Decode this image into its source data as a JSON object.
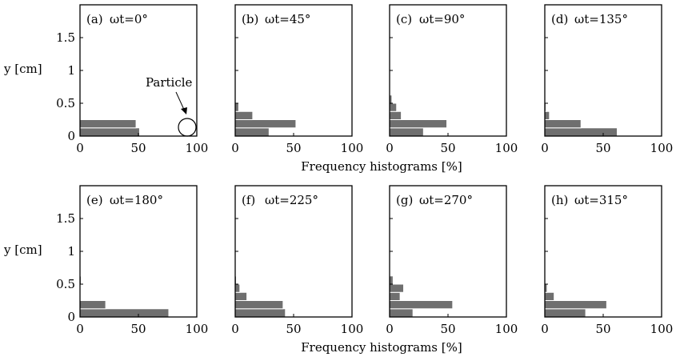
{
  "figure": {
    "ylabel": "y [cm]",
    "xlabel": "Frequency histograms [%]",
    "annotation": "Particle"
  },
  "chart_data": [
    {
      "type": "bar",
      "orientation": "horizontal",
      "panel": "(a)",
      "title": "ωt=0°",
      "xlim": [
        0,
        100
      ],
      "ylim": [
        0,
        2
      ],
      "xticks": [
        "0",
        "50",
        "100"
      ],
      "yticks": [
        "0",
        "0.5",
        "1",
        "1.5"
      ],
      "bins": [
        0.0625,
        0.1875,
        0.3125,
        0.4375,
        0.5625,
        0.6875,
        0.8125,
        0.9375
      ],
      "values": [
        51,
        48,
        0,
        0,
        0,
        0,
        0,
        0
      ]
    },
    {
      "type": "bar",
      "orientation": "horizontal",
      "panel": "(b)",
      "title": "ωt=45°",
      "xlim": [
        0,
        100
      ],
      "ylim": [
        0,
        2
      ],
      "xticks": [
        "0",
        "50",
        "100"
      ],
      "yticks": [
        "0",
        "0.5",
        "1",
        "1.5"
      ],
      "bins": [
        0.0625,
        0.1875,
        0.3125,
        0.4375,
        0.5625,
        0.6875,
        0.8125,
        0.9375
      ],
      "values": [
        29,
        52,
        15,
        3,
        0,
        0,
        0,
        0
      ]
    },
    {
      "type": "bar",
      "orientation": "horizontal",
      "panel": "(c)",
      "title": "ωt=90°",
      "xlim": [
        0,
        100
      ],
      "ylim": [
        0,
        2
      ],
      "xticks": [
        "0",
        "50",
        "100"
      ],
      "yticks": [
        "0",
        "0.5",
        "1",
        "1.5"
      ],
      "bins": [
        0.0625,
        0.1875,
        0.3125,
        0.4375,
        0.5625,
        0.6875,
        0.8125,
        0.9375
      ],
      "values": [
        29,
        49,
        10,
        6,
        2,
        0,
        0,
        0
      ]
    },
    {
      "type": "bar",
      "orientation": "horizontal",
      "panel": "(d)",
      "title": "ωt=135°",
      "xlim": [
        0,
        100
      ],
      "ylim": [
        0,
        2
      ],
      "xticks": [
        "0",
        "50",
        "100"
      ],
      "yticks": [
        "0",
        "0.5",
        "1",
        "1.5"
      ],
      "bins": [
        0.0625,
        0.1875,
        0.3125,
        0.4375,
        0.5625,
        0.6875,
        0.8125,
        0.9375
      ],
      "values": [
        62,
        31,
        4,
        1,
        0,
        0,
        0,
        0
      ]
    },
    {
      "type": "bar",
      "orientation": "horizontal",
      "panel": "(e)",
      "title": "ωt=180°",
      "xlim": [
        0,
        100
      ],
      "ylim": [
        0,
        2
      ],
      "xticks": [
        "0",
        "50",
        "100"
      ],
      "yticks": [
        "0",
        "0.5",
        "1",
        "1.5"
      ],
      "bins": [
        0.0625,
        0.1875,
        0.3125,
        0.4375,
        0.5625,
        0.6875,
        0.8125,
        0.9375
      ],
      "values": [
        76,
        22,
        0,
        0,
        1,
        0,
        0.5,
        0
      ]
    },
    {
      "type": "bar",
      "orientation": "horizontal",
      "panel": "(f)",
      "title": "ωt=225°",
      "xlim": [
        0,
        100
      ],
      "ylim": [
        0,
        2
      ],
      "xticks": [
        "0",
        "50",
        "100"
      ],
      "yticks": [
        "0",
        "0.5",
        "1",
        "1.5"
      ],
      "bins": [
        0.0625,
        0.1875,
        0.3125,
        0.4375,
        0.5625,
        0.6875,
        0.8125,
        0.9375
      ],
      "values": [
        43,
        41,
        10,
        4,
        1,
        0,
        0,
        0
      ]
    },
    {
      "type": "bar",
      "orientation": "horizontal",
      "panel": "(g)",
      "title": "ωt=270°",
      "xlim": [
        0,
        100
      ],
      "ylim": [
        0,
        2
      ],
      "xticks": [
        "0",
        "50",
        "100"
      ],
      "yticks": [
        "0",
        "0.5",
        "1",
        "1.5"
      ],
      "bins": [
        0.0625,
        0.1875,
        0.3125,
        0.4375,
        0.5625,
        0.6875,
        0.8125,
        0.9375
      ],
      "values": [
        20,
        54,
        9,
        12,
        3,
        0,
        0,
        0
      ]
    },
    {
      "type": "bar",
      "orientation": "horizontal",
      "panel": "(h)",
      "title": "ωt=315°",
      "xlim": [
        0,
        100
      ],
      "ylim": [
        0,
        2
      ],
      "xticks": [
        "0",
        "50",
        "100"
      ],
      "yticks": [
        "0",
        "0.5",
        "1",
        "1.5"
      ],
      "bins": [
        0.0625,
        0.1875,
        0.3125,
        0.4375,
        0.5625,
        0.6875,
        0.8125,
        0.9375
      ],
      "values": [
        35,
        53,
        8,
        2,
        0,
        0,
        0,
        0
      ]
    }
  ]
}
